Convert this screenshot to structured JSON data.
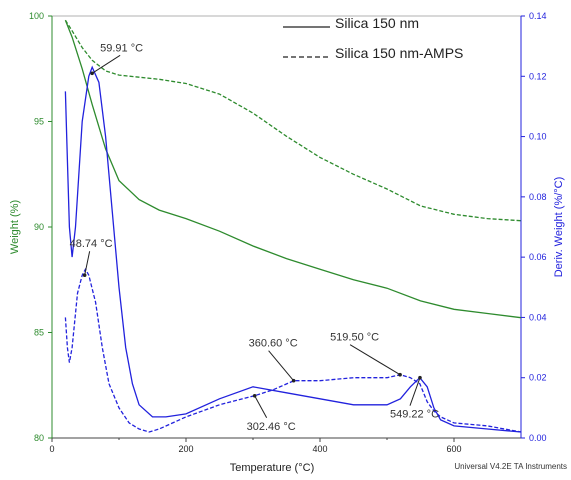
{
  "chart_data": {
    "type": "line",
    "title": "",
    "xlabel": "Temperature (°C)",
    "ylabel_left": "Weight (%)",
    "ylabel_right": "Deriv. Weight (%/°C)",
    "footer": "Universal V4.2E TA Instruments",
    "xlim": [
      0,
      700
    ],
    "ylim_left": [
      80,
      100
    ],
    "ylim_right": [
      0,
      0.14
    ],
    "x_ticks": [
      "0",
      "200",
      "400",
      "600"
    ],
    "y_left_ticks": [
      "80",
      "85",
      "90",
      "95",
      "100"
    ],
    "y_right_ticks": [
      "0.00",
      "0.02",
      "0.04",
      "0.06",
      "0.08",
      "0.10",
      "0.12",
      "0.14"
    ],
    "grid": false,
    "legend_position": "top-right",
    "legend": [
      {
        "label": "Silica 150 nm",
        "style": "solid"
      },
      {
        "label": "Silica 150 nm-AMPS",
        "style": "dashed"
      }
    ],
    "colors": {
      "weight": "#2e8b2e",
      "deriv": "#2222dd",
      "axis_left": "#2e8b2e",
      "axis_right": "#2222dd"
    },
    "series": [
      {
        "name": "Silica 150 nm",
        "measure": "weight",
        "axis": "left",
        "style": "solid",
        "x": [
          20,
          30,
          45,
          60,
          80,
          100,
          130,
          160,
          200,
          250,
          300,
          350,
          400,
          450,
          500,
          550,
          600,
          650,
          700
        ],
        "y": [
          99.8,
          99.0,
          97.5,
          95.8,
          93.7,
          92.2,
          91.3,
          90.8,
          90.4,
          89.8,
          89.1,
          88.5,
          88.0,
          87.5,
          87.1,
          86.5,
          86.1,
          85.9,
          85.7
        ]
      },
      {
        "name": "Silica 150 nm-AMPS",
        "measure": "weight",
        "axis": "left",
        "style": "dashed",
        "x": [
          20,
          30,
          45,
          60,
          80,
          100,
          130,
          160,
          200,
          250,
          300,
          350,
          400,
          450,
          500,
          550,
          600,
          650,
          700
        ],
        "y": [
          99.8,
          99.3,
          98.5,
          97.9,
          97.4,
          97.2,
          97.1,
          97.0,
          96.8,
          96.3,
          95.4,
          94.3,
          93.3,
          92.5,
          91.8,
          91.0,
          90.6,
          90.4,
          90.3
        ]
      },
      {
        "name": "Silica 150 nm",
        "measure": "derivative",
        "axis": "right",
        "style": "solid",
        "x": [
          20,
          22,
          26,
          30,
          35,
          45,
          55,
          60,
          70,
          80,
          90,
          100,
          110,
          120,
          130,
          150,
          170,
          200,
          250,
          300,
          350,
          400,
          450,
          500,
          520,
          535,
          549,
          560,
          570,
          580,
          600,
          650,
          700
        ],
        "y": [
          0.115,
          0.1,
          0.07,
          0.06,
          0.07,
          0.105,
          0.12,
          0.123,
          0.118,
          0.1,
          0.075,
          0.05,
          0.03,
          0.018,
          0.011,
          0.007,
          0.007,
          0.008,
          0.013,
          0.017,
          0.015,
          0.013,
          0.011,
          0.011,
          0.013,
          0.017,
          0.02,
          0.017,
          0.01,
          0.006,
          0.004,
          0.003,
          0.002
        ]
      },
      {
        "name": "Silica 150 nm-AMPS",
        "measure": "derivative",
        "axis": "right",
        "style": "dashed",
        "x": [
          20,
          23,
          26,
          30,
          38,
          45,
          50,
          55,
          65,
          75,
          85,
          100,
          115,
          130,
          145,
          160,
          200,
          250,
          302,
          330,
          361,
          400,
          450,
          500,
          520,
          535,
          549,
          560,
          570,
          580,
          600,
          650,
          700
        ],
        "y": [
          0.04,
          0.03,
          0.025,
          0.03,
          0.048,
          0.054,
          0.056,
          0.054,
          0.045,
          0.03,
          0.018,
          0.01,
          0.005,
          0.003,
          0.002,
          0.003,
          0.007,
          0.011,
          0.014,
          0.016,
          0.019,
          0.019,
          0.02,
          0.02,
          0.021,
          0.02,
          0.018,
          0.012,
          0.009,
          0.007,
          0.005,
          0.004,
          0.002
        ]
      }
    ],
    "annotations": [
      {
        "text": "59.91 °C",
        "x": 59.91,
        "axis": "right",
        "y": 0.121
      },
      {
        "text": "48.74 °C",
        "x": 48.74,
        "axis": "right",
        "y": 0.054
      },
      {
        "text": "360.60 °C",
        "x": 360.6,
        "axis": "right",
        "y": 0.019
      },
      {
        "text": "519.50 °C",
        "x": 519.5,
        "axis": "right",
        "y": 0.021
      },
      {
        "text": "302.46 °C",
        "x": 302.46,
        "axis": "right",
        "y": 0.014
      },
      {
        "text": "549.22 °C",
        "x": 549.22,
        "axis": "right",
        "y": 0.02
      }
    ]
  }
}
